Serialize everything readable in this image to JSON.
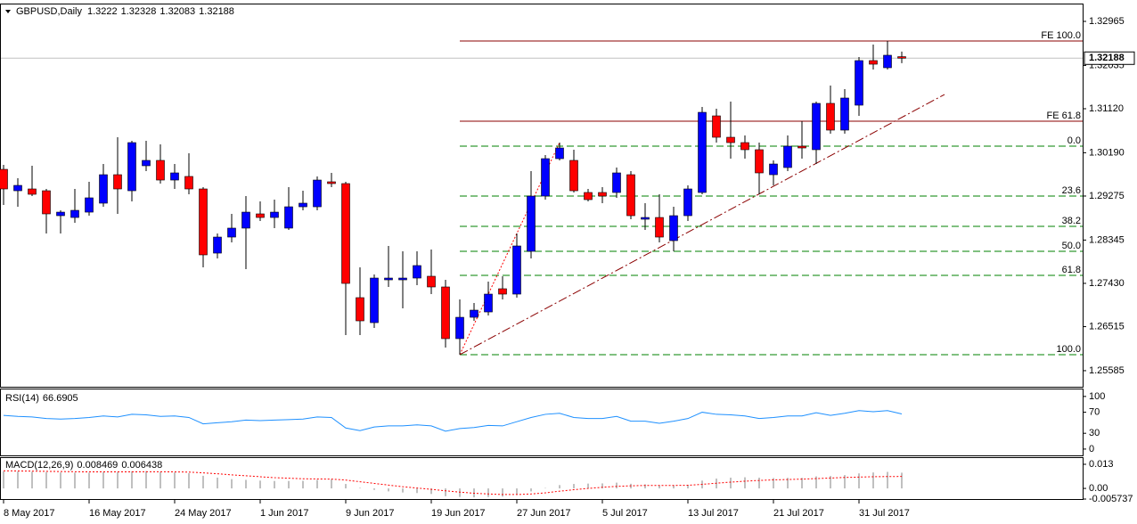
{
  "chart_data": [
    {
      "type": "candlestick",
      "title": "GBPUSD,Daily",
      "categories": [
        "8 May 2017",
        null,
        null,
        null,
        null,
        null,
        "16 May 2017",
        null,
        null,
        null,
        null,
        null,
        "24 May 2017",
        null,
        null,
        null,
        null,
        null,
        "1 Jun 2017",
        null,
        null,
        null,
        null,
        null,
        "9 Jun 2017",
        null,
        null,
        null,
        null,
        null,
        "19 Jun 2017",
        null,
        null,
        null,
        null,
        null,
        "27 Jun 2017",
        null,
        null,
        null,
        null,
        null,
        "5 Jul 2017",
        null,
        null,
        null,
        null,
        null,
        "13 Jul 2017",
        null,
        null,
        null,
        null,
        null,
        "21 Jul 2017",
        null,
        null,
        null,
        null,
        null,
        "31 Jul 2017",
        null,
        null,
        null
      ],
      "open": [
        1.29839,
        1.29387,
        1.29425,
        1.29387,
        1.2886,
        1.28822,
        1.28935,
        1.29124,
        1.29726,
        1.29387,
        1.29915,
        1.30028,
        1.29613,
        1.29689,
        1.29425,
        1.28069,
        1.28408,
        1.28597,
        1.28898,
        1.28822,
        1.28597,
        1.29048,
        1.29048,
        1.29576,
        1.29538,
        1.27128,
        1.266,
        1.27504,
        1.27504,
        1.27542,
        1.2758,
        1.27354,
        1.26262,
        1.26713,
        1.26826,
        1.27316,
        1.27203,
        1.28107,
        1.29274,
        1.30065,
        1.30028,
        1.2935,
        1.2935,
        1.2935,
        1.29726,
        1.28785,
        1.28822,
        1.28333,
        1.2886,
        1.2935,
        1.30969,
        1.30517,
        1.30404,
        1.30254,
        1.29726,
        1.29877,
        1.30329,
        1.30254,
        1.31233,
        1.30668,
        1.31195,
        1.32137,
        1.31986,
        1.3222
      ],
      "high": [
        1.29933,
        1.29651,
        1.29915,
        1.29425,
        1.28973,
        1.29425,
        1.29576,
        1.29952,
        1.30517,
        1.30442,
        1.30442,
        1.30367,
        1.29952,
        1.30178,
        1.29463,
        1.28484,
        1.28898,
        1.29274,
        1.29161,
        1.29199,
        1.29463,
        1.29387,
        1.29689,
        1.29764,
        1.29576,
        1.27768,
        1.27617,
        1.2822,
        1.28107,
        1.28107,
        1.28145,
        1.27504,
        1.2709,
        1.27015,
        1.27467,
        1.2758,
        1.28484,
        1.29802,
        1.30141,
        1.30404,
        1.30254,
        1.29425,
        1.29463,
        1.29877,
        1.29802,
        1.29124,
        1.29312,
        1.29048,
        1.295,
        1.31157,
        1.3112,
        1.3127,
        1.30555,
        1.30404,
        1.30028,
        1.30555,
        1.30856,
        1.3127,
        1.31609,
        1.31534,
        1.32212,
        1.32475,
        1.32551,
        1.32328
      ],
      "low": [
        1.29086,
        1.29048,
        1.29274,
        1.28484,
        1.28484,
        1.28709,
        1.2886,
        1.29048,
        1.28898,
        1.29161,
        1.29802,
        1.29538,
        1.29425,
        1.29312,
        1.27768,
        1.27956,
        1.28295,
        1.2773,
        1.28747,
        1.28597,
        1.28559,
        1.28973,
        1.28973,
        1.29463,
        1.26337,
        1.26337,
        1.26488,
        1.27354,
        1.26902,
        1.27391,
        1.27203,
        1.26073,
        1.25923,
        1.26638,
        1.26751,
        1.2709,
        1.27128,
        1.27956,
        1.29199,
        1.30028,
        1.2935,
        1.29161,
        1.29124,
        1.29237,
        1.28785,
        1.28559,
        1.28295,
        1.28107,
        1.28747,
        1.29312,
        1.30404,
        1.30065,
        1.30065,
        1.29312,
        1.295,
        1.29802,
        1.30065,
        1.29952,
        1.30592,
        1.30592,
        1.30969,
        1.31948,
        1.31948,
        1.32083
      ],
      "close": [
        1.29425,
        1.295,
        1.29312,
        1.28898,
        1.28935,
        1.28973,
        1.29237,
        1.29726,
        1.29425,
        1.30404,
        1.30028,
        1.29613,
        1.29764,
        1.29425,
        1.28032,
        1.28408,
        1.28597,
        1.28935,
        1.28822,
        1.28935,
        1.29048,
        1.29124,
        1.29613,
        1.29538,
        1.27429,
        1.26638,
        1.27542,
        1.27542,
        1.27542,
        1.27806,
        1.27354,
        1.26262,
        1.26713,
        1.26864,
        1.27203,
        1.27203,
        1.2822,
        1.29274,
        1.30065,
        1.30291,
        1.29387,
        1.29199,
        1.29274,
        1.29764,
        1.2886,
        1.28822,
        1.28408,
        1.2886,
        1.29425,
        1.31044,
        1.30517,
        1.30404,
        1.30254,
        1.29764,
        1.29952,
        1.30329,
        1.30291,
        1.31233,
        1.30668,
        1.31346,
        1.32137,
        1.32061,
        1.3225,
        1.32188
      ],
      "up_color": "#0000ff",
      "down_color": "#ff0000",
      "wick_color": "#000000",
      "ylim": [
        1.25245,
        1.33323
      ],
      "yticks": [
        1.32965,
        1.32035,
        {
          "value": 1.3112,
          "label": "1.31120"
        },
        {
          "value": 1.3019,
          "label": "1.30190"
        },
        1.29275,
        1.28345,
        {
          "value": 1.2743,
          "label": "1.27430"
        },
        1.26515,
        1.25585
      ],
      "fe_color": "#8b0000",
      "fibo_color": "#008000",
      "fe_levels": [
        {
          "label": "FE 100.0",
          "price": 1.32551
        },
        {
          "label": "FE 61.8",
          "price": 1.30856
        }
      ],
      "fibo_levels": [
        {
          "label": "0.0",
          "price": 1.30329
        },
        {
          "label": "23.6",
          "price": 1.29274
        },
        {
          "label": "38.2",
          "price": 1.28634
        },
        {
          "label": "50.0",
          "price": 1.28107
        },
        {
          "label": "61.8",
          "price": 1.27598
        },
        {
          "label": "100.0",
          "price": 1.25923
        }
      ],
      "trendline": {
        "start": [
          32,
          1.25923
        ],
        "end": [
          66,
          1.31421
        ]
      },
      "zigzag": {
        "start": [
          32,
          1.25923
        ],
        "end": [
          39,
          1.30404
        ]
      }
    },
    {
      "type": "line",
      "title": "RSI(14)",
      "color": "#1e90ff",
      "values": [
        64,
        62,
        61,
        58,
        57,
        58,
        60,
        63,
        61,
        66,
        65,
        62,
        63,
        60,
        48,
        50,
        52,
        55,
        54,
        55,
        56,
        57,
        61,
        60,
        40,
        35,
        42,
        44,
        44,
        46,
        44,
        34,
        39,
        41,
        45,
        44,
        52,
        60,
        66,
        68,
        60,
        58,
        58,
        62,
        53,
        53,
        49,
        53,
        58,
        70,
        66,
        65,
        63,
        58,
        60,
        63,
        63,
        69,
        64,
        68,
        73,
        71,
        73,
        66.6905
      ],
      "ylim": [
        -12,
        115
      ],
      "yticks": [
        100,
        70,
        30,
        0
      ]
    },
    {
      "type": "macd",
      "title": "MACD(12,26,9)",
      "histogram_color": "#c0c0c0",
      "signal_color": "#ff0000",
      "histogram": [
        0.0092,
        0.0091,
        0.009,
        0.0088,
        0.0086,
        0.0085,
        0.0085,
        0.0087,
        0.0088,
        0.0092,
        0.0093,
        0.0089,
        0.0086,
        0.0082,
        0.0068,
        0.0058,
        0.005,
        0.0046,
        0.0042,
        0.004,
        0.004,
        0.0041,
        0.0046,
        0.0048,
        0.0024,
        0.0003,
        -0.0008,
        -0.0016,
        -0.0022,
        -0.0025,
        -0.003,
        -0.0042,
        -0.0046,
        -0.0048,
        -0.0046,
        -0.0044,
        -0.0034,
        -0.0016,
        0.0002,
        0.0018,
        0.0024,
        0.0026,
        0.0027,
        0.0031,
        0.0025,
        0.0022,
        0.0016,
        0.0016,
        0.0019,
        0.0042,
        0.0053,
        0.0058,
        0.006,
        0.0058,
        0.0056,
        0.0057,
        0.0057,
        0.0065,
        0.0067,
        0.0072,
        0.0081,
        0.0086,
        0.0089,
        0.008469
      ],
      "signal": [
        0.0095,
        0.0094,
        0.0093,
        0.0092,
        0.0091,
        0.009,
        0.0089,
        0.0089,
        0.0089,
        0.0089,
        0.009,
        0.009,
        0.0089,
        0.0088,
        0.0084,
        0.0079,
        0.0073,
        0.0068,
        0.0063,
        0.0058,
        0.0055,
        0.0052,
        0.0051,
        0.005,
        0.0045,
        0.0036,
        0.0027,
        0.0018,
        0.0009,
        0.0002,
        -0.0005,
        -0.0013,
        -0.002,
        -0.0026,
        -0.003,
        -0.0033,
        -0.0033,
        -0.003,
        -0.0024,
        -0.0015,
        -0.0007,
        0,
        0.0006,
        0.0011,
        0.0014,
        0.0016,
        0.0016,
        0.0016,
        0.0017,
        0.0022,
        0.0028,
        0.0034,
        0.0039,
        0.0043,
        0.0046,
        0.0048,
        0.005,
        0.0053,
        0.0056,
        0.0059,
        0.0061,
        0.0063,
        0.0064,
        0.006438
      ],
      "ylim": [
        -0.005737,
        0.01685
      ],
      "yticks": [
        0.013,
        {
          "value": 0,
          "label": "0.00"
        },
        -0.005737
      ]
    }
  ]
}
